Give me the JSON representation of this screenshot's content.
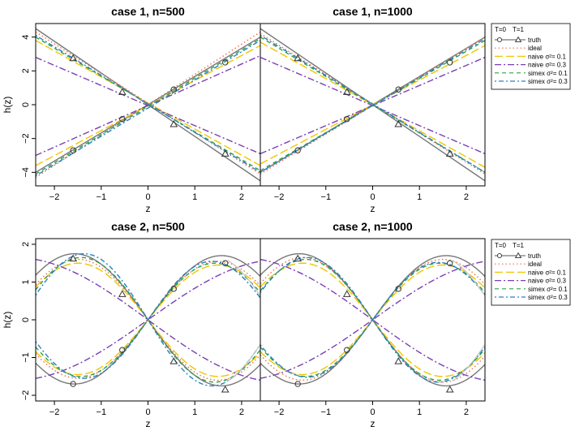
{
  "chart_data": [
    {
      "type": "line",
      "case": 1,
      "title": "case 1, n=500",
      "xlabel": "z",
      "ylabel": "h(z)",
      "xlim": [
        -2.4,
        2.4
      ],
      "ylim": [
        -4.8,
        4.8
      ],
      "xticks": [
        -2,
        -1,
        0,
        1,
        2
      ],
      "yticks": [
        -4,
        -2,
        0,
        2,
        4
      ],
      "series": [
        {
          "name": "truth T=0",
          "x": [
            -2.4,
            2.4
          ],
          "y": [
            -4.0,
            4.0
          ]
        },
        {
          "name": "truth T=1",
          "x": [
            -2.4,
            2.4
          ],
          "y": [
            4.5,
            -4.5
          ]
        },
        {
          "name": "ideal T=0",
          "x": [
            -2.4,
            2.4
          ],
          "y": [
            -4.3,
            4.3
          ]
        },
        {
          "name": "ideal T=1",
          "x": [
            -2.4,
            2.4
          ],
          "y": [
            4.3,
            -4.1
          ]
        },
        {
          "name": "naive σ²=0.1 T=0",
          "x": [
            -2.4,
            2.4
          ],
          "y": [
            -3.6,
            3.5
          ]
        },
        {
          "name": "naive σ²=0.1 T=1",
          "x": [
            -2.4,
            2.4
          ],
          "y": [
            3.8,
            -3.6
          ]
        },
        {
          "name": "naive σ²=0.3 T=0",
          "x": [
            -2.4,
            2.4
          ],
          "y": [
            -3.0,
            2.9
          ]
        },
        {
          "name": "naive σ²=0.3 T=1",
          "x": [
            -2.4,
            2.4
          ],
          "y": [
            2.8,
            -2.9
          ]
        },
        {
          "name": "simex σ²=0.1 T=0",
          "x": [
            -2.4,
            2.4
          ],
          "y": [
            -4.1,
            3.9
          ]
        },
        {
          "name": "simex σ²=0.1 T=1",
          "x": [
            -2.4,
            2.4
          ],
          "y": [
            4.0,
            -3.9
          ]
        },
        {
          "name": "simex σ²=0.3 T=0",
          "x": [
            -2.4,
            2.4
          ],
          "y": [
            -4.2,
            3.8
          ]
        },
        {
          "name": "simex σ²=0.3 T=1",
          "x": [
            -2.4,
            2.4
          ],
          "y": [
            4.1,
            -4.0
          ]
        }
      ],
      "markers": {
        "circles": [
          [
            -1.6,
            -2.7
          ],
          [
            -0.55,
            -0.85
          ],
          [
            0.55,
            0.9
          ],
          [
            1.65,
            2.5
          ]
        ],
        "triangles": [
          [
            -1.6,
            2.75
          ],
          [
            -0.55,
            0.75
          ],
          [
            0.55,
            -1.15
          ],
          [
            1.65,
            -2.9
          ]
        ]
      }
    },
    {
      "type": "line",
      "case": 1,
      "title": "case 1, n=1000",
      "xlabel": "z",
      "ylabel": "",
      "xlim": [
        -2.4,
        2.4
      ],
      "ylim": [
        -4.8,
        4.8
      ],
      "xticks": [
        -2,
        -1,
        0,
        1,
        2
      ],
      "yticks": [],
      "series": [
        {
          "name": "truth T=0",
          "x": [
            -2.4,
            2.4
          ],
          "y": [
            -4.0,
            4.0
          ]
        },
        {
          "name": "truth T=1",
          "x": [
            -2.4,
            2.4
          ],
          "y": [
            4.5,
            -4.5
          ]
        },
        {
          "name": "ideal T=0",
          "x": [
            -2.4,
            2.4
          ],
          "y": [
            -4.1,
            4.0
          ]
        },
        {
          "name": "ideal T=1",
          "x": [
            -2.4,
            2.4
          ],
          "y": [
            4.2,
            -4.1
          ]
        },
        {
          "name": "naive σ²=0.1 T=0",
          "x": [
            -2.4,
            2.4
          ],
          "y": [
            -3.5,
            3.5
          ]
        },
        {
          "name": "naive σ²=0.1 T=1",
          "x": [
            -2.4,
            2.4
          ],
          "y": [
            3.7,
            -3.7
          ]
        },
        {
          "name": "naive σ²=0.3 T=0",
          "x": [
            -2.4,
            2.4
          ],
          "y": [
            -2.9,
            2.8
          ]
        },
        {
          "name": "naive σ²=0.3 T=1",
          "x": [
            -2.4,
            2.4
          ],
          "y": [
            2.8,
            -2.9
          ]
        },
        {
          "name": "simex σ²=0.1 T=0",
          "x": [
            -2.4,
            2.4
          ],
          "y": [
            -3.9,
            3.8
          ]
        },
        {
          "name": "simex σ²=0.1 T=1",
          "x": [
            -2.4,
            2.4
          ],
          "y": [
            4.0,
            -4.0
          ]
        },
        {
          "name": "simex σ²=0.3 T=0",
          "x": [
            -2.4,
            2.4
          ],
          "y": [
            -4.0,
            3.9
          ]
        },
        {
          "name": "simex σ²=0.3 T=1",
          "x": [
            -2.4,
            2.4
          ],
          "y": [
            4.1,
            -4.0
          ]
        }
      ],
      "markers": {
        "circles": [
          [
            -1.6,
            -2.7
          ],
          [
            -0.55,
            -0.85
          ],
          [
            0.55,
            0.9
          ],
          [
            1.65,
            2.5
          ]
        ],
        "triangles": [
          [
            -1.6,
            2.75
          ],
          [
            -0.55,
            0.75
          ],
          [
            0.55,
            -1.15
          ],
          [
            1.65,
            -2.9
          ]
        ]
      }
    },
    {
      "type": "line",
      "case": 2,
      "title": "case 2, n=500",
      "xlabel": "z",
      "ylabel": "h(z)",
      "xlim": [
        -2.4,
        2.4
      ],
      "ylim": [
        -2.15,
        2.15
      ],
      "xticks": [
        -2,
        -1,
        0,
        1,
        2
      ],
      "yticks": [
        -2,
        -1,
        0,
        1,
        2
      ],
      "series": [
        {
          "name": "truth T=0",
          "amp": 1.7,
          "freq": 1.0
        },
        {
          "name": "truth T=1",
          "amp": -1.75,
          "freq": 1.0
        },
        {
          "name": "ideal T=0",
          "amp": 1.55,
          "freq": 1.05
        },
        {
          "name": "ideal T=1",
          "amp": -1.6,
          "freq": 1.05
        },
        {
          "name": "naive σ²=0.1 T=0",
          "amp": 1.45,
          "freq": 1.05
        },
        {
          "name": "naive σ²=0.1 T=1",
          "amp": -1.5,
          "freq": 1.05
        },
        {
          "name": "naive σ²=0.3 T=0",
          "amp": 1.6,
          "freq": 0.55
        },
        {
          "name": "naive σ²=0.3 T=1",
          "amp": -1.65,
          "freq": 0.55
        },
        {
          "name": "simex σ²=0.1 T=0",
          "amp": 1.5,
          "freq": 1.1
        },
        {
          "name": "simex σ²=0.1 T=1",
          "amp": -1.65,
          "freq": 1.1
        },
        {
          "name": "simex σ²=0.3 T=0",
          "amp": 1.55,
          "freq": 1.15
        },
        {
          "name": "simex σ²=0.3 T=1",
          "amp": -1.75,
          "freq": 1.15
        }
      ],
      "markers": {
        "circles": [
          [
            -1.6,
            -1.7
          ],
          [
            -0.55,
            -0.8
          ],
          [
            0.55,
            0.82
          ],
          [
            1.65,
            1.5
          ]
        ],
        "triangles": [
          [
            -1.6,
            1.62
          ],
          [
            -0.55,
            0.68
          ],
          [
            0.55,
            -1.1
          ],
          [
            1.65,
            -1.85
          ]
        ]
      }
    },
    {
      "type": "line",
      "case": 2,
      "title": "case 2, n=1000",
      "xlabel": "z",
      "ylabel": "",
      "xlim": [
        -2.4,
        2.4
      ],
      "ylim": [
        -2.15,
        2.15
      ],
      "xticks": [
        -2,
        -1,
        0,
        1,
        2
      ],
      "yticks": [],
      "series": [
        {
          "name": "truth T=0",
          "amp": 1.7,
          "freq": 1.0
        },
        {
          "name": "truth T=1",
          "amp": -1.75,
          "freq": 1.0
        },
        {
          "name": "ideal T=0",
          "amp": 1.6,
          "freq": 1.05
        },
        {
          "name": "ideal T=1",
          "amp": -1.65,
          "freq": 1.05
        },
        {
          "name": "naive σ²=0.1 T=0",
          "amp": 1.45,
          "freq": 1.05
        },
        {
          "name": "naive σ²=0.1 T=1",
          "amp": -1.5,
          "freq": 1.05
        },
        {
          "name": "naive σ²=0.3 T=0",
          "amp": 1.6,
          "freq": 0.55
        },
        {
          "name": "naive σ²=0.3 T=1",
          "amp": -1.65,
          "freq": 0.55
        },
        {
          "name": "simex σ²=0.1 T=0",
          "amp": 1.5,
          "freq": 1.1
        },
        {
          "name": "simex σ²=0.1 T=1",
          "amp": -1.6,
          "freq": 1.1
        },
        {
          "name": "simex σ²=0.3 T=0",
          "amp": 1.52,
          "freq": 1.12
        },
        {
          "name": "simex σ²=0.3 T=1",
          "amp": -1.65,
          "freq": 1.12
        }
      ],
      "markers": {
        "circles": [
          [
            -1.6,
            -1.7
          ],
          [
            -0.55,
            -0.8
          ],
          [
            0.55,
            0.82
          ],
          [
            1.65,
            1.5
          ]
        ],
        "triangles": [
          [
            -1.6,
            1.62
          ],
          [
            -0.55,
            0.68
          ],
          [
            0.55,
            -1.1
          ],
          [
            1.65,
            -1.85
          ]
        ]
      }
    }
  ],
  "legend": {
    "header_t0": "T=0",
    "header_t1": "T=1",
    "entries": [
      {
        "label": "truth",
        "style": "solid",
        "color": "#777777"
      },
      {
        "label": "ideal",
        "style": "dotted",
        "color": "#e8704a"
      },
      {
        "label": "naive σ²= 0.1",
        "style": "longdash",
        "color": "#f2c400"
      },
      {
        "label": "naive σ²= 0.3",
        "style": "dashdot",
        "color": "#7a3fb5"
      },
      {
        "label": "simex σ²= 0.1",
        "style": "dashed",
        "color": "#2aa24a"
      },
      {
        "label": "simex σ²= 0.3",
        "style": "dotdash",
        "color": "#2a7fc4"
      }
    ]
  },
  "colors": {
    "truth": "#777777",
    "truth_light": "#c4c4c4",
    "ideal": "#e8704a",
    "naive01": "#f2c400",
    "naive03": "#7a3fb5",
    "simex01": "#2aa24a",
    "simex03": "#2a7fc4"
  }
}
